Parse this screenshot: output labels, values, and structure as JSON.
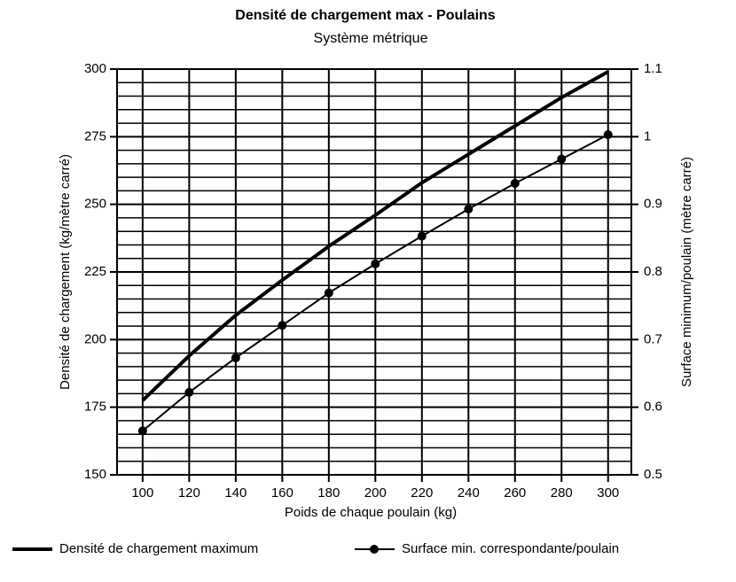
{
  "chart_data": {
    "type": "line",
    "title": "Densité de chargement max - Poulains",
    "subtitle": "Système métrique",
    "x_label": "Poids de chaque poulain (kg)",
    "y_label": "Densité de chargement (kg/mètre carré)",
    "y2_label": "Surface minimum/poulain (mètre carré)",
    "x": [
      100,
      120,
      140,
      160,
      180,
      200,
      220,
      240,
      260,
      280,
      300
    ],
    "xlim": [
      89,
      310
    ],
    "xticks": [
      100,
      120,
      140,
      160,
      180,
      200,
      220,
      240,
      260,
      280,
      300
    ],
    "ylim": [
      150,
      300
    ],
    "yticks": [
      150,
      175,
      200,
      225,
      250,
      275,
      300
    ],
    "yminorticks": [
      155,
      160,
      165,
      170,
      180,
      185,
      190,
      195,
      205,
      210,
      215,
      220,
      230,
      235,
      240,
      245,
      255,
      260,
      265,
      270,
      280,
      285,
      290,
      295
    ],
    "y2lim": [
      0.5,
      1.1
    ],
    "y2ticks": [
      0.5,
      0.6,
      0.7,
      0.8,
      0.9,
      1,
      1.1
    ],
    "grid": true,
    "legend": "bottom",
    "series": [
      {
        "name": "Densité de chargement maximum",
        "color": "#000000",
        "values": [
          177.5,
          194,
          209,
          222,
          234.5,
          246,
          258,
          268.5,
          279,
          289.5,
          299
        ]
      },
      {
        "name": "Surface min. correspondante/poulain",
        "color": "#000000",
        "axis": "y2",
        "marker": true,
        "values": [
          0.565,
          0.622,
          0.673,
          0.721,
          0.769,
          0.812,
          0.853,
          0.893,
          0.931,
          0.967,
          1.003
        ]
      }
    ]
  }
}
